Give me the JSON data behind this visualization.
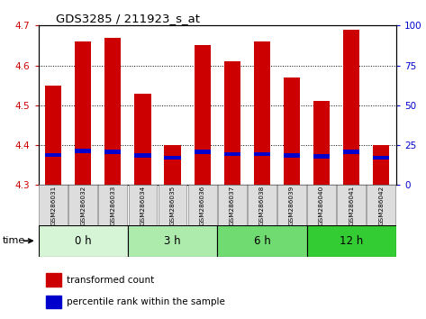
{
  "title": "GDS3285 / 211923_s_at",
  "samples": [
    "GSM286031",
    "GSM286032",
    "GSM286033",
    "GSM286034",
    "GSM286035",
    "GSM286036",
    "GSM286037",
    "GSM286038",
    "GSM286039",
    "GSM286040",
    "GSM286041",
    "GSM286042"
  ],
  "red_values": [
    4.55,
    4.66,
    4.67,
    4.53,
    4.4,
    4.65,
    4.61,
    4.66,
    4.57,
    4.51,
    4.69,
    4.4
  ],
  "blue_values": [
    4.375,
    4.385,
    4.383,
    4.374,
    4.368,
    4.383,
    4.378,
    4.378,
    4.374,
    4.372,
    4.383,
    4.368
  ],
  "base_value": 4.3,
  "ylim_left": [
    4.3,
    4.7
  ],
  "ylim_right": [
    0,
    100
  ],
  "yticks_left": [
    4.3,
    4.4,
    4.5,
    4.6,
    4.7
  ],
  "yticks_right": [
    0,
    25,
    50,
    75,
    100
  ],
  "time_groups": [
    {
      "label": "0 h",
      "start": 0,
      "end": 3,
      "color": "#d6f5d6"
    },
    {
      "label": "3 h",
      "start": 3,
      "end": 6,
      "color": "#adebad"
    },
    {
      "label": "6 h",
      "start": 6,
      "end": 9,
      "color": "#70db70"
    },
    {
      "label": "12 h",
      "start": 9,
      "end": 12,
      "color": "#33cc33"
    }
  ],
  "bar_width": 0.55,
  "red_color": "#cc0000",
  "blue_color": "#0000cc",
  "blue_bar_height": 0.01,
  "grid_color": "black",
  "axis_color_left": "#cc0000",
  "axis_color_right": "#0000cc",
  "tick_box_color": "#dddddd",
  "legend_red_label": "transformed count",
  "legend_blue_label": "percentile rank within the sample",
  "time_label": "time"
}
